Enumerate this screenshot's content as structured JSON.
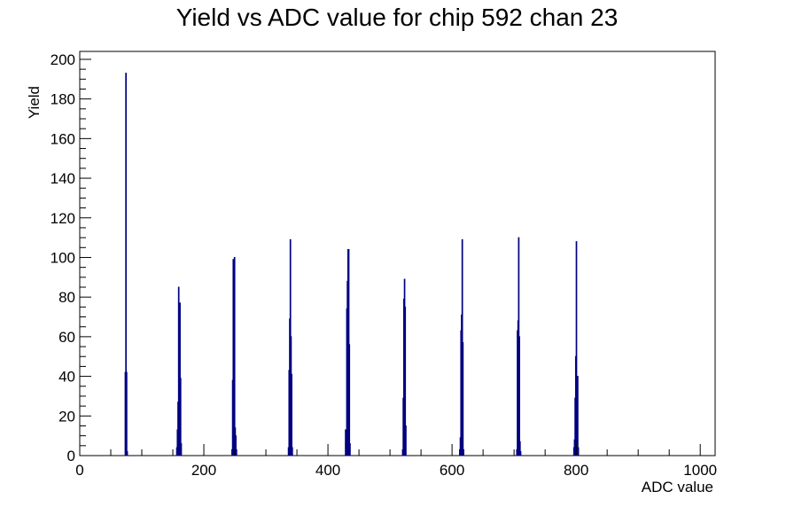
{
  "chart_data": {
    "type": "bar",
    "title": "Yield vs ADC value for chip 592 chan 23",
    "xlabel": "ADC value",
    "ylabel": "Yield",
    "xlim": [
      0,
      1024
    ],
    "ylim": [
      0,
      204
    ],
    "x_ticks": [
      0,
      200,
      400,
      600,
      800,
      1000
    ],
    "y_ticks": [
      0,
      20,
      40,
      60,
      80,
      100,
      120,
      140,
      160,
      180,
      200
    ],
    "x_tick_labels": [
      "0",
      "200",
      "400",
      "600",
      "800",
      "1000"
    ],
    "y_tick_labels": [
      "0",
      "20",
      "40",
      "60",
      "80",
      "100",
      "120",
      "140",
      "160",
      "180",
      "200"
    ],
    "bin_width": 1,
    "series": [
      {
        "color": "#000080",
        "bins": [
          {
            "x": 73,
            "y": 42
          },
          {
            "x": 74,
            "y": 193
          },
          {
            "x": 75,
            "y": 42
          },
          {
            "x": 76,
            "y": 2
          },
          {
            "x": 156,
            "y": 4
          },
          {
            "x": 157,
            "y": 13
          },
          {
            "x": 158,
            "y": 27
          },
          {
            "x": 159,
            "y": 85
          },
          {
            "x": 160,
            "y": 77
          },
          {
            "x": 161,
            "y": 77
          },
          {
            "x": 162,
            "y": 39
          },
          {
            "x": 163,
            "y": 6
          },
          {
            "x": 245,
            "y": 3
          },
          {
            "x": 246,
            "y": 38
          },
          {
            "x": 247,
            "y": 99
          },
          {
            "x": 248,
            "y": 59
          },
          {
            "x": 249,
            "y": 100
          },
          {
            "x": 250,
            "y": 14
          },
          {
            "x": 251,
            "y": 10
          },
          {
            "x": 252,
            "y": 3
          },
          {
            "x": 336,
            "y": 4
          },
          {
            "x": 337,
            "y": 43
          },
          {
            "x": 338,
            "y": 69
          },
          {
            "x": 339,
            "y": 109
          },
          {
            "x": 340,
            "y": 60
          },
          {
            "x": 341,
            "y": 41
          },
          {
            "x": 342,
            "y": 4
          },
          {
            "x": 428,
            "y": 13
          },
          {
            "x": 429,
            "y": 8
          },
          {
            "x": 430,
            "y": 74
          },
          {
            "x": 431,
            "y": 88
          },
          {
            "x": 432,
            "y": 104
          },
          {
            "x": 433,
            "y": 104
          },
          {
            "x": 434,
            "y": 56
          },
          {
            "x": 435,
            "y": 6
          },
          {
            "x": 520,
            "y": 3
          },
          {
            "x": 521,
            "y": 29
          },
          {
            "x": 522,
            "y": 79
          },
          {
            "x": 523,
            "y": 89
          },
          {
            "x": 524,
            "y": 75
          },
          {
            "x": 525,
            "y": 15
          },
          {
            "x": 612,
            "y": 3
          },
          {
            "x": 613,
            "y": 9
          },
          {
            "x": 614,
            "y": 63
          },
          {
            "x": 615,
            "y": 71
          },
          {
            "x": 616,
            "y": 109
          },
          {
            "x": 617,
            "y": 57
          },
          {
            "x": 618,
            "y": 3
          },
          {
            "x": 704,
            "y": 3
          },
          {
            "x": 705,
            "y": 63
          },
          {
            "x": 706,
            "y": 68
          },
          {
            "x": 707,
            "y": 110
          },
          {
            "x": 708,
            "y": 60
          },
          {
            "x": 709,
            "y": 7
          },
          {
            "x": 710,
            "y": 2
          },
          {
            "x": 796,
            "y": 4
          },
          {
            "x": 797,
            "y": 8
          },
          {
            "x": 798,
            "y": 29
          },
          {
            "x": 799,
            "y": 50
          },
          {
            "x": 800,
            "y": 108
          },
          {
            "x": 801,
            "y": 15
          },
          {
            "x": 802,
            "y": 40
          },
          {
            "x": 803,
            "y": 4
          }
        ]
      }
    ],
    "grid": false,
    "legend": "none"
  }
}
